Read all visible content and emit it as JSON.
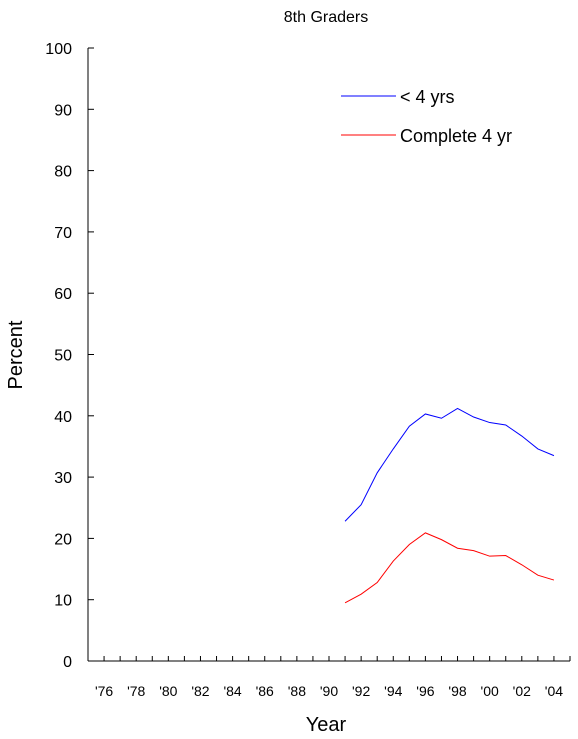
{
  "chart_data": {
    "type": "line",
    "title": "8th Graders",
    "xlabel": "Year",
    "ylabel": "Percent",
    "ylim": [
      0,
      100
    ],
    "yticks": [
      0,
      10,
      20,
      30,
      40,
      50,
      60,
      70,
      80,
      90,
      100
    ],
    "xlim": [
      1975,
      2005
    ],
    "xtick_labels": [
      {
        "x": 1976,
        "label": "'76"
      },
      {
        "x": 1978,
        "label": "'78"
      },
      {
        "x": 1980,
        "label": "'80"
      },
      {
        "x": 1982,
        "label": "'82"
      },
      {
        "x": 1984,
        "label": "'84"
      },
      {
        "x": 1986,
        "label": "'86"
      },
      {
        "x": 1988,
        "label": "'88"
      },
      {
        "x": 1990,
        "label": "'90"
      },
      {
        "x": 1992,
        "label": "'92"
      },
      {
        "x": 1994,
        "label": "'94"
      },
      {
        "x": 1996,
        "label": "'96"
      },
      {
        "x": 1998,
        "label": "'98"
      },
      {
        "x": 2000,
        "label": "'00"
      },
      {
        "x": 2002,
        "label": "'02"
      },
      {
        "x": 2004,
        "label": "'04"
      }
    ],
    "grid": false,
    "legend_position": "top-right",
    "x": [
      1991,
      1992,
      1993,
      1994,
      1995,
      1996,
      1997,
      1998,
      1999,
      2000,
      2001,
      2002,
      2003,
      2004
    ],
    "series": [
      {
        "name": "< 4 yrs",
        "color": "#0000ff",
        "values": [
          22.8,
          25.5,
          30.7,
          34.6,
          38.3,
          40.3,
          39.6,
          41.2,
          39.8,
          38.9,
          38.5,
          36.7,
          34.6,
          33.5
        ]
      },
      {
        "name": "Complete 4 yr",
        "color": "#ff0000",
        "values": [
          9.5,
          10.9,
          12.8,
          16.3,
          19.0,
          20.9,
          19.8,
          18.4,
          18.0,
          17.1,
          17.2,
          15.7,
          14.0,
          13.2
        ]
      }
    ]
  }
}
